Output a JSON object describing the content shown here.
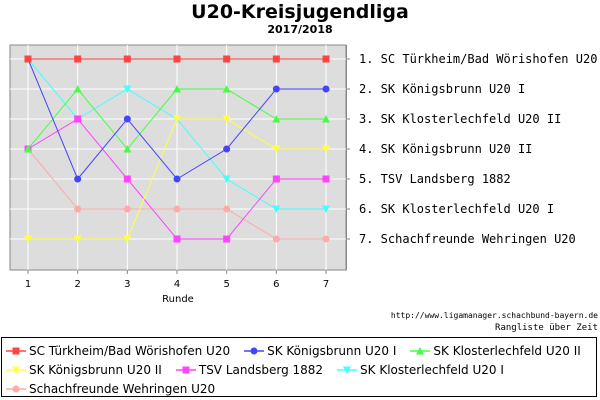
{
  "chart_data": {
    "type": "line",
    "title": "U20-Kreisjugendliga",
    "subtitle": "2017/2018",
    "xlabel": "Runde",
    "ylabel": "",
    "x": [
      1,
      2,
      3,
      4,
      5,
      6,
      7
    ],
    "x_ticks": [
      "1",
      "2",
      "3",
      "4",
      "5",
      "6",
      "7"
    ],
    "ylim": [
      1,
      7
    ],
    "y_reversed": true,
    "grid": true,
    "legend_position": "bottom",
    "right_labels": [
      "1. SC Türkheim/Bad Wörishofen U20",
      "2. SK Königsbrunn U20 I",
      "3. SK Klosterlechfeld U20 II",
      "4. SK Königsbrunn U20 II",
      "5. TSV Landsberg 1882",
      "6. SK Klosterlechfeld U20 I",
      "7. Schachfreunde Wehringen U20"
    ],
    "series": [
      {
        "name": "SC Türkheim/Bad Wörishofen U20",
        "color": "#ff4444",
        "marker": "square",
        "values": [
          1,
          1,
          1,
          1,
          1,
          1,
          1
        ]
      },
      {
        "name": "SK Königsbrunn U20 I",
        "color": "#4444ff",
        "marker": "circle",
        "values": [
          1,
          5,
          3,
          5,
          4,
          2,
          2
        ]
      },
      {
        "name": "SK Klosterlechfeld U20 II",
        "color": "#44ff44",
        "marker": "triangle-up",
        "values": [
          4,
          2,
          4,
          2,
          2,
          3,
          3
        ]
      },
      {
        "name": "SK Königsbrunn U20 II",
        "color": "#ffff44",
        "marker": "triangle-down",
        "values": [
          7,
          7,
          7,
          3,
          3,
          4,
          4
        ]
      },
      {
        "name": "TSV Landsberg 1882",
        "color": "#ff44ff",
        "marker": "square",
        "values": [
          4,
          3,
          5,
          7,
          7,
          5,
          5
        ]
      },
      {
        "name": "SK Klosterlechfeld U20 I",
        "color": "#44ffff",
        "marker": "triangle-down",
        "values": [
          1,
          3,
          2,
          3,
          5,
          6,
          6
        ]
      },
      {
        "name": "Schachfreunde Wehringen U20",
        "color": "#ffaaaa",
        "marker": "circle",
        "values": [
          4,
          6,
          6,
          6,
          6,
          7,
          7
        ]
      }
    ]
  },
  "source_url": "http://www.ligamanager.schachbund-bayern.de",
  "footer_note": "Rangliste über Zeit"
}
